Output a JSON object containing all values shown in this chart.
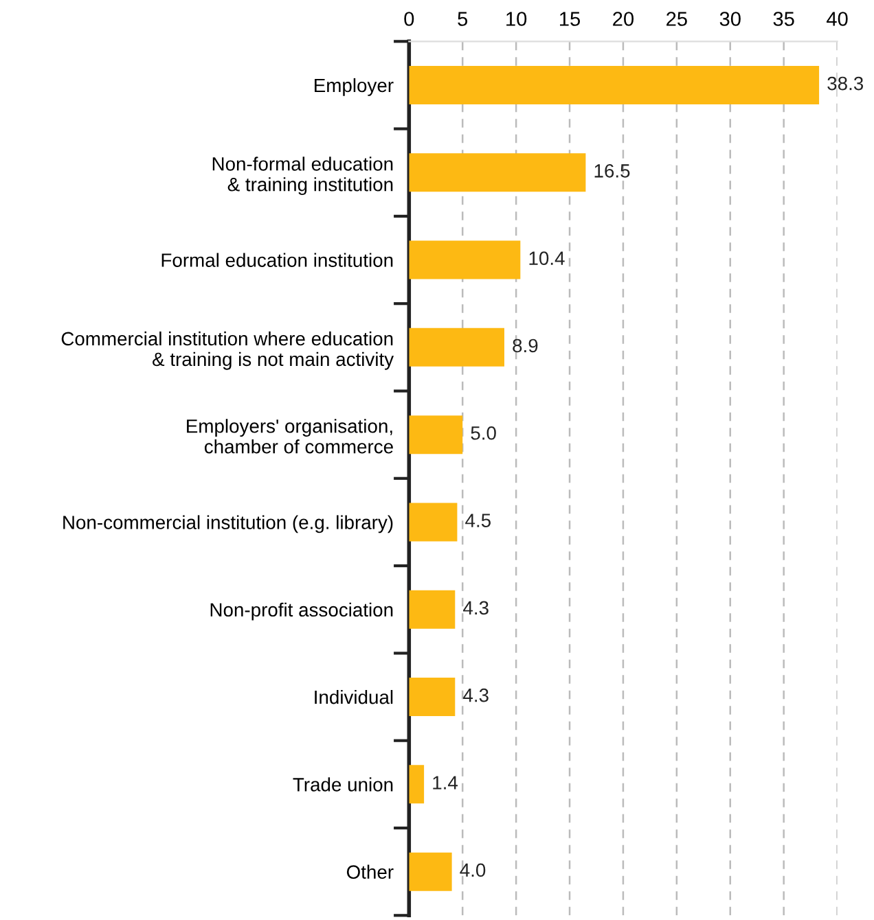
{
  "chart_data": {
    "type": "bar",
    "orientation": "horizontal",
    "categories": [
      "Employer",
      "Non-formal education\n& training institution",
      "Formal education institution",
      "Commercial institution where education\n& training is not main activity",
      "Employers' organisation,\nchamber of commerce",
      "Non-commercial institution (e.g. library)",
      "Non-profit association",
      "Individual",
      "Trade union",
      "Other"
    ],
    "values": [
      38.3,
      16.5,
      10.4,
      8.9,
      5.0,
      4.5,
      4.3,
      4.3,
      1.4,
      4.0
    ],
    "value_labels": [
      "38.3",
      "16.5",
      "10.4",
      "8.9",
      "5.0",
      "4.5",
      "4.3",
      "4.3",
      "1.4",
      "4.0"
    ],
    "color": "#fdb913",
    "xlim": [
      0,
      40
    ],
    "xticks": [
      0,
      5,
      10,
      15,
      20,
      25,
      30,
      35,
      40
    ],
    "grid": "x",
    "legend": false
  }
}
